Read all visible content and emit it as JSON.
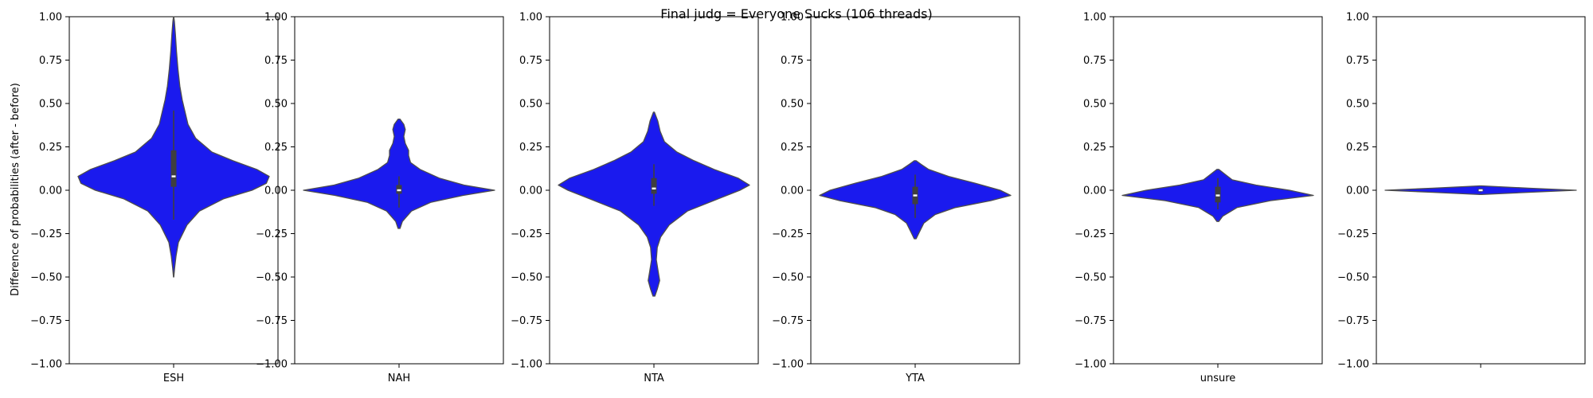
{
  "chart_data": {
    "type": "violin",
    "title": "Final judg = Everyone Sucks (106 threads)",
    "ylabel": "Difference of probabilities (after - before)",
    "ylim": [
      -1.0,
      1.0
    ],
    "yticks": [
      "1.00",
      "0.75",
      "0.50",
      "0.25",
      "0.00",
      "−0.25",
      "−0.50",
      "−0.75",
      "−1.00"
    ],
    "ytick_values": [
      1.0,
      0.75,
      0.5,
      0.25,
      0.0,
      -0.25,
      -0.5,
      -0.75,
      -1.0
    ],
    "violin_color": "#1a1aee",
    "violin_edge": "#4d4d4d",
    "box_color": "#3f3f3f",
    "median_color": "#ffffff",
    "panels": [
      {
        "category": "ESH",
        "range": [
          -0.5,
          1.0
        ],
        "whisker": [
          -0.17,
          0.46
        ],
        "box": [
          0.02,
          0.23
        ],
        "median": 0.08,
        "density": [
          [
            -0.5,
            0.002
          ],
          [
            -0.45,
            0.01
          ],
          [
            -0.38,
            0.025
          ],
          [
            -0.3,
            0.05
          ],
          [
            -0.2,
            0.14
          ],
          [
            -0.12,
            0.27
          ],
          [
            -0.05,
            0.52
          ],
          [
            0.0,
            0.82
          ],
          [
            0.04,
            0.97
          ],
          [
            0.08,
            1.0
          ],
          [
            0.12,
            0.87
          ],
          [
            0.17,
            0.62
          ],
          [
            0.22,
            0.4
          ],
          [
            0.3,
            0.23
          ],
          [
            0.38,
            0.15
          ],
          [
            0.45,
            0.12
          ],
          [
            0.52,
            0.09
          ],
          [
            0.6,
            0.065
          ],
          [
            0.7,
            0.045
          ],
          [
            0.8,
            0.03
          ],
          [
            0.9,
            0.018
          ],
          [
            0.97,
            0.008
          ],
          [
            1.0,
            0.002
          ]
        ]
      },
      {
        "category": "NAH",
        "range": [
          -0.22,
          0.41
        ],
        "whisker": [
          -0.1,
          0.08
        ],
        "box": [
          -0.02,
          0.03
        ],
        "median": 0.0,
        "density": [
          [
            -0.22,
            0.01
          ],
          [
            -0.18,
            0.035
          ],
          [
            -0.12,
            0.13
          ],
          [
            -0.07,
            0.33
          ],
          [
            -0.03,
            0.67
          ],
          [
            0.0,
            1.0
          ],
          [
            0.03,
            0.68
          ],
          [
            0.07,
            0.42
          ],
          [
            0.12,
            0.22
          ],
          [
            0.16,
            0.12
          ],
          [
            0.2,
            0.1
          ],
          [
            0.23,
            0.1
          ],
          [
            0.27,
            0.065
          ],
          [
            0.31,
            0.05
          ],
          [
            0.35,
            0.065
          ],
          [
            0.38,
            0.05
          ],
          [
            0.41,
            0.01
          ]
        ]
      },
      {
        "category": "NTA",
        "range": [
          -0.61,
          0.45
        ],
        "whisker": [
          -0.09,
          0.15
        ],
        "box": [
          -0.02,
          0.07
        ],
        "median": 0.01,
        "density": [
          [
            -0.61,
            0.01
          ],
          [
            -0.57,
            0.035
          ],
          [
            -0.52,
            0.06
          ],
          [
            -0.47,
            0.045
          ],
          [
            -0.4,
            0.025
          ],
          [
            -0.33,
            0.035
          ],
          [
            -0.27,
            0.07
          ],
          [
            -0.2,
            0.16
          ],
          [
            -0.12,
            0.35
          ],
          [
            -0.05,
            0.67
          ],
          [
            0.0,
            0.9
          ],
          [
            0.03,
            1.0
          ],
          [
            0.07,
            0.88
          ],
          [
            0.12,
            0.63
          ],
          [
            0.17,
            0.42
          ],
          [
            0.22,
            0.24
          ],
          [
            0.28,
            0.11
          ],
          [
            0.34,
            0.065
          ],
          [
            0.4,
            0.04
          ],
          [
            0.45,
            0.005
          ]
        ]
      },
      {
        "category": "YTA",
        "range": [
          -0.28,
          0.17
        ],
        "whisker": [
          -0.16,
          0.09
        ],
        "box": [
          -0.08,
          0.02
        ],
        "median": -0.03,
        "density": [
          [
            -0.28,
            0.01
          ],
          [
            -0.24,
            0.045
          ],
          [
            -0.19,
            0.09
          ],
          [
            -0.14,
            0.21
          ],
          [
            -0.1,
            0.42
          ],
          [
            -0.06,
            0.79
          ],
          [
            -0.03,
            1.0
          ],
          [
            0.0,
            0.89
          ],
          [
            0.04,
            0.63
          ],
          [
            0.08,
            0.35
          ],
          [
            0.12,
            0.14
          ],
          [
            0.15,
            0.06
          ],
          [
            0.17,
            0.01
          ]
        ]
      },
      {
        "category": "unsure",
        "range": [
          -0.18,
          0.12
        ],
        "whisker": [
          -0.11,
          0.07
        ],
        "box": [
          -0.07,
          0.02
        ],
        "median": -0.03,
        "density": [
          [
            -0.18,
            0.01
          ],
          [
            -0.15,
            0.05
          ],
          [
            -0.1,
            0.2
          ],
          [
            -0.06,
            0.55
          ],
          [
            -0.03,
            1.0
          ],
          [
            0.0,
            0.75
          ],
          [
            0.03,
            0.4
          ],
          [
            0.06,
            0.15
          ],
          [
            0.09,
            0.08
          ],
          [
            0.12,
            0.01
          ]
        ]
      },
      {
        "category": "",
        "range": [
          -0.025,
          0.025
        ],
        "whisker": [
          -0.012,
          0.012
        ],
        "box": [
          -0.006,
          0.008
        ],
        "median": 0.0,
        "density": [
          [
            -0.025,
            0.01
          ],
          [
            -0.012,
            0.5
          ],
          [
            0.0,
            1.0
          ],
          [
            0.012,
            0.5
          ],
          [
            0.025,
            0.01
          ]
        ]
      }
    ],
    "grid": false,
    "legend": "none"
  }
}
